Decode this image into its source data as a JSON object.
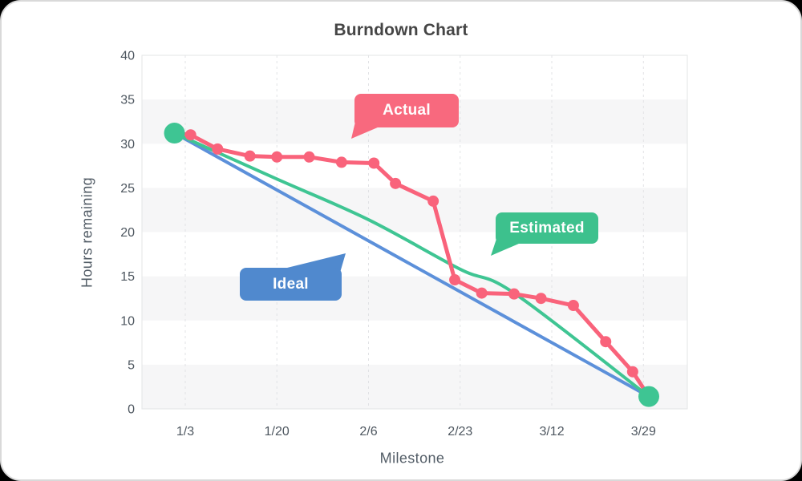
{
  "card": {
    "title": "Burndown Chart"
  },
  "axes": {
    "y_title": "Hours remaining",
    "x_title": "Milestone"
  },
  "chart_data": {
    "type": "line",
    "title": "Burndown Chart",
    "xlabel": "Milestone",
    "ylabel": "Hours remaining",
    "ylim": [
      0,
      40
    ],
    "y_ticks": [
      0,
      5,
      10,
      15,
      20,
      25,
      30,
      35,
      40
    ],
    "x_ticks": [
      {
        "label": "1/3",
        "day": 3
      },
      {
        "label": "1/20",
        "day": 20
      },
      {
        "label": "2/6",
        "day": 37
      },
      {
        "label": "2/23",
        "day": 54
      },
      {
        "label": "3/12",
        "day": 71
      },
      {
        "label": "3/29",
        "day": 88
      }
    ],
    "grid": {
      "vertical_dashed": true,
      "horizontal": false,
      "stripe_bands": [
        [
          0,
          5
        ],
        [
          10,
          15
        ],
        [
          20,
          25
        ],
        [
          30,
          35
        ]
      ]
    },
    "legend_style": "callout-bubbles",
    "series": [
      {
        "name": "Ideal",
        "color": "#5c90da",
        "width": 4,
        "smooth": false,
        "dots": false,
        "points": [
          {
            "date": "1/1",
            "day": 1,
            "hours": 31.2
          },
          {
            "date": "3/30",
            "day": 89,
            "hours": 1.4
          }
        ]
      },
      {
        "name": "Estimated",
        "color": "#3fc593",
        "width": 4,
        "smooth": true,
        "dots": false,
        "points": [
          {
            "date": "1/1",
            "day": 1,
            "hours": 31.2
          },
          {
            "date": "1/20",
            "day": 20,
            "hours": 26.0
          },
          {
            "date": "2/6",
            "day": 37,
            "hours": 21.4
          },
          {
            "date": "2/23",
            "day": 54,
            "hours": 15.8
          },
          {
            "date": "3/5",
            "day": 64,
            "hours": 13.1
          },
          {
            "date": "3/30",
            "day": 89,
            "hours": 1.4
          }
        ]
      },
      {
        "name": "Actual",
        "color": "#f9637b",
        "width": 5,
        "smooth": false,
        "dots": true,
        "dot_radius": 7,
        "points": [
          {
            "date": "1/1",
            "day": 1,
            "hours": 31.2
          },
          {
            "date": "1/4",
            "day": 4,
            "hours": 31.0
          },
          {
            "date": "1/9",
            "day": 9,
            "hours": 29.4
          },
          {
            "date": "1/15",
            "day": 15,
            "hours": 28.6
          },
          {
            "date": "1/20",
            "day": 20,
            "hours": 28.5
          },
          {
            "date": "1/26",
            "day": 26,
            "hours": 28.5
          },
          {
            "date": "2/1",
            "day": 32,
            "hours": 27.9
          },
          {
            "date": "2/7",
            "day": 38,
            "hours": 27.8
          },
          {
            "date": "2/11",
            "day": 42,
            "hours": 25.5
          },
          {
            "date": "2/18",
            "day": 49,
            "hours": 23.5
          },
          {
            "date": "2/22",
            "day": 53,
            "hours": 14.6
          },
          {
            "date": "2/27",
            "day": 58,
            "hours": 13.1
          },
          {
            "date": "3/5",
            "day": 64,
            "hours": 13.0
          },
          {
            "date": "3/10",
            "day": 69,
            "hours": 12.5
          },
          {
            "date": "3/16",
            "day": 75,
            "hours": 11.7
          },
          {
            "date": "3/22",
            "day": 81,
            "hours": 7.6
          },
          {
            "date": "3/27",
            "day": 86,
            "hours": 4.2
          },
          {
            "date": "3/30",
            "day": 89,
            "hours": 1.4
          }
        ]
      }
    ],
    "endpoint_markers": {
      "color": "#3ec593",
      "radius": 13,
      "points": [
        {
          "day": 1,
          "hours": 31.2
        },
        {
          "day": 89,
          "hours": 1.4
        }
      ]
    }
  },
  "annotations": [
    {
      "id": "actual",
      "label": "Actual",
      "color": "#f8697e"
    },
    {
      "id": "estimated",
      "label": "Estimated",
      "color": "#3dc18d"
    },
    {
      "id": "ideal",
      "label": "Ideal",
      "color": "#5089ce"
    }
  ],
  "style": {
    "stripe_color": "#f6f6f7",
    "grid_color": "#e1e2e5",
    "border_color": "#e3e4e6",
    "tick_color": "#4e5760"
  }
}
